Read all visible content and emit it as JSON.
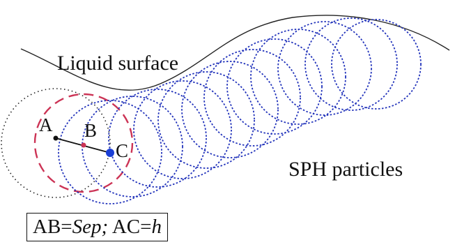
{
  "diagram": {
    "surface_label": "Liquid surface",
    "particles_label": "SPH particles",
    "point_a": "A",
    "point_b": "B",
    "point_c": "C",
    "caption": {
      "ab_prefix": "AB=",
      "ab_value": "Sep;",
      "ac_prefix": " AC=",
      "ac_value": "h"
    }
  },
  "colors": {
    "particle_circle": "#2233bb",
    "dashed_circle": "#cc3355",
    "dotted_circle": "#222222",
    "surface_line": "#222222",
    "point_c": "#1a3fd6",
    "point_b": "#cc3355"
  }
}
